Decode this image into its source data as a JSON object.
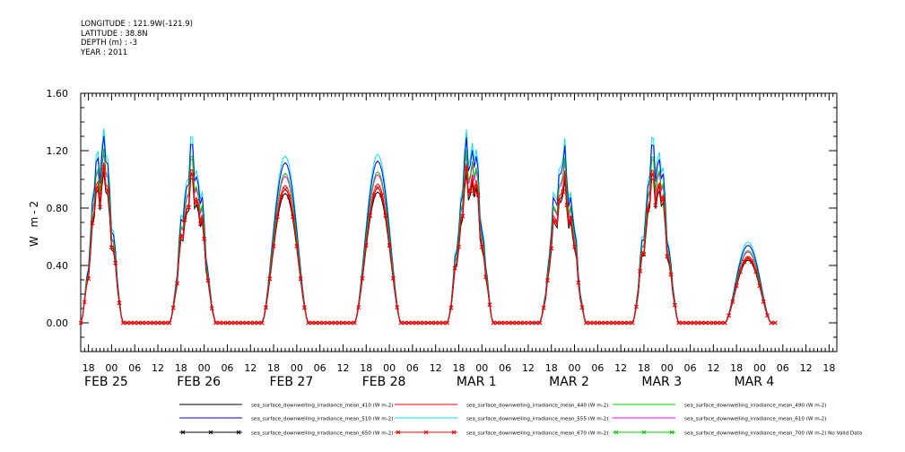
{
  "header": {
    "longitude": "LONGITUDE : 121.9W(-121.9)",
    "latitude": "LATITUDE : 38.8N",
    "depth": "DEPTH (m) : -3",
    "year": "YEAR : 2011"
  },
  "chart_data": {
    "type": "line",
    "title": "",
    "xlabel": "",
    "ylabel": "W m-2",
    "ylim": [
      -0.2,
      1.6
    ],
    "xlim_hours": [
      -8,
      188
    ],
    "y_ticks": [
      "0.00",
      "0.40",
      "0.80",
      "1.20",
      "1.60"
    ],
    "y_tick_values": [
      0,
      0.4,
      0.8,
      1.2,
      1.6
    ],
    "x_hour_labels": [
      "18",
      "00",
      "06",
      "12",
      "18",
      "00",
      "06",
      "12",
      "18",
      "00",
      "06",
      "12",
      "18",
      "00",
      "06",
      "12",
      "18",
      "00",
      "06",
      "12",
      "18",
      "00",
      "06",
      "12",
      "18",
      "00",
      "06",
      "12",
      "18",
      "00",
      "06",
      "12",
      "18"
    ],
    "x_date_labels": [
      {
        "text": "FEB 25",
        "hour": 0
      },
      {
        "text": "FEB 26",
        "hour": 24
      },
      {
        "text": "FEB 27",
        "hour": 48
      },
      {
        "text": "FEB 28",
        "hour": 72
      },
      {
        "text": "MAR  1",
        "hour": 96
      },
      {
        "text": "MAR  2",
        "hour": 120
      },
      {
        "text": "MAR  3",
        "hour": 144
      },
      {
        "text": "MAR  4",
        "hour": 168
      }
    ],
    "days": [
      {
        "label": "FEB 25",
        "rise_hour": -8,
        "set_hour": 3,
        "peak_hour": -2,
        "peak": 1.0,
        "spiky": true
      },
      {
        "label": "FEB 26",
        "rise_hour": 15,
        "set_hour": 27,
        "peak_hour": 21,
        "peak": 0.93,
        "spiky": true
      },
      {
        "label": "FEB 27",
        "rise_hour": 39,
        "set_hour": 51,
        "peak_hour": 45,
        "peak": 0.93,
        "spiky": false
      },
      {
        "label": "FEB 28",
        "rise_hour": 63,
        "set_hour": 75,
        "peak_hour": 69,
        "peak": 0.94,
        "spiky": false
      },
      {
        "label": "MAR 1",
        "rise_hour": 87,
        "set_hour": 99,
        "peak_hour": 93,
        "peak": 1.0,
        "spiky": true
      },
      {
        "label": "MAR 2",
        "rise_hour": 111,
        "set_hour": 123,
        "peak_hour": 117,
        "peak": 0.9,
        "spiky": true
      },
      {
        "label": "MAR 3",
        "rise_hour": 135,
        "set_hour": 147,
        "peak_hour": 141,
        "peak": 0.97,
        "spiky": true
      },
      {
        "label": "MAR 4",
        "rise_hour": 159,
        "set_hour": 171,
        "peak_hour": 165,
        "peak": 0.45,
        "spiky": false
      }
    ],
    "series": [
      {
        "name": "sea_surface_downwelling_irradiance_mean_410 (W m-2)",
        "color": "#000000",
        "scale": 0.97,
        "marker": "none"
      },
      {
        "name": "sea_surface_downwelling_irradiance_mean_440 (W m-2)",
        "color": "#ff0000",
        "scale": 1.03,
        "marker": "none"
      },
      {
        "name": "sea_surface_downwelling_irradiance_mean_490 (W m-2)",
        "color": "#00cc00",
        "scale": 1.12,
        "marker": "none"
      },
      {
        "name": "sea_surface_downwelling_irradiance_mean_510 (W m-2)",
        "color": "#0000ff",
        "scale": 1.2,
        "marker": "none"
      },
      {
        "name": "sea_surface_downwelling_irradiance_mean_555 (W m-2)",
        "color": "#00e5ee",
        "scale": 1.25,
        "marker": "none"
      },
      {
        "name": "sea_surface_downwelling_irradiance_mean_610 (W m-2)",
        "color": "#ff00ff",
        "scale": 1.1,
        "marker": "none"
      },
      {
        "name": "sea_surface_downwelling_irradiance_mean_650 (W m-2)",
        "color": "#000000",
        "scale": 1.0,
        "marker": "x"
      },
      {
        "name": "sea_surface_downwelling_irradiance_mean_670 (W m-2)",
        "color": "#ff0000",
        "scale": 1.0,
        "marker": "x"
      },
      {
        "name": "sea_surface_downwelling_irradiance_mean_700 (W m-2) No Valid Data",
        "color": "#00cc00",
        "scale": 0,
        "marker": "x"
      }
    ],
    "grid": false,
    "legend_position": "bottom"
  }
}
